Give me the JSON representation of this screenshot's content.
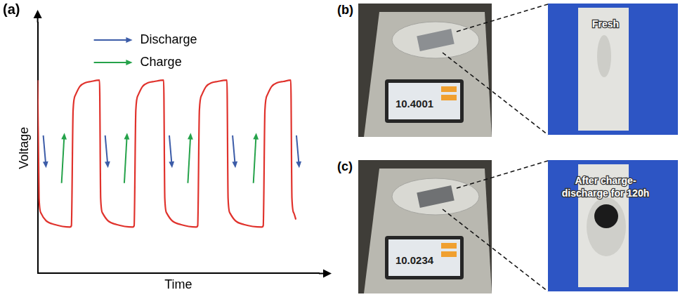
{
  "chart_data": {
    "type": "line",
    "panel_label": "(a)",
    "x_label": "Time",
    "y_label": "Voltage",
    "xlim": [
      0,
      100
    ],
    "ylim": [
      0,
      10
    ],
    "tick_labels": false,
    "grid": false,
    "legend": "upper left",
    "x": [
      0,
      0.5,
      1.2,
      3,
      6,
      11.5,
      12.0,
      12.6,
      13.4,
      15,
      17,
      19,
      22,
      22.4,
      23.1,
      25,
      28,
      33.8,
      34.3,
      34.9,
      35.7,
      37.3,
      39.3,
      41.5,
      44.8,
      45.2,
      45.9,
      47.8,
      50.8,
      56.4,
      56.9,
      57.5,
      58.3,
      59.9,
      61.9,
      64,
      67.3,
      67.7,
      68.4,
      70.3,
      73.3,
      79.7,
      80.2,
      80.8,
      81.6,
      83.2,
      85.2,
      87.4,
      90,
      90.4,
      91.1,
      91.8
    ],
    "series": [
      {
        "color": "#e0322c",
        "line_style": "solid",
        "values": [
          7.7,
          3.0,
          2.4,
          2.1,
          1.95,
          1.85,
          1.9,
          6.5,
          7.1,
          7.45,
          7.6,
          7.65,
          7.7,
          3.0,
          2.4,
          2.1,
          1.95,
          1.85,
          1.9,
          6.5,
          7.1,
          7.45,
          7.6,
          7.65,
          7.7,
          3.0,
          2.4,
          2.1,
          1.95,
          1.85,
          1.9,
          6.5,
          7.1,
          7.45,
          7.6,
          7.65,
          7.7,
          3.0,
          2.4,
          2.1,
          1.95,
          1.85,
          1.9,
          6.5,
          7.1,
          7.45,
          7.6,
          7.65,
          7.7,
          3.0,
          2.4,
          2.15
        ]
      }
    ],
    "arrow_legend": [
      {
        "name": "Discharge",
        "color": "#3c5ca8"
      },
      {
        "name": "Charge",
        "color": "#25a24a"
      }
    ]
  },
  "photo_panels": [
    {
      "letter": "(b)",
      "balance_reading": "10.4001",
      "sample_label": "Fresh"
    },
    {
      "letter": "(c)",
      "balance_reading": "10.0234",
      "sample_label": "After charge-discharge for 120h"
    }
  ]
}
